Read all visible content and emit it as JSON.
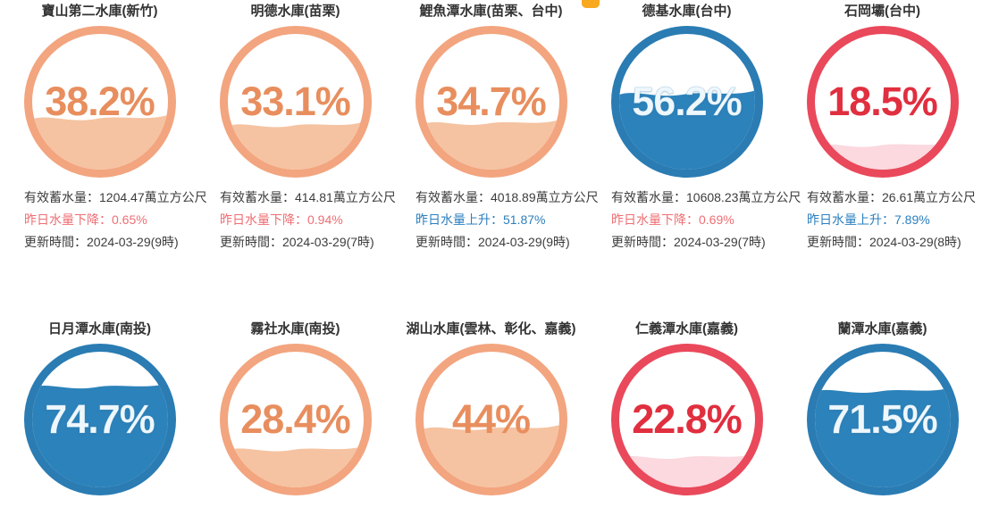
{
  "page": {
    "background": "#ffffff"
  },
  "top_tab": {
    "color": "#f8a91f"
  },
  "colors": {
    "text": "#3c3c3c",
    "down": "#ee6e73",
    "up": "#2b7fbe"
  },
  "themes": {
    "orange": {
      "ring": "#f2a57f",
      "water": "#f5c3a1",
      "percent": "#e88e5e"
    },
    "blue": {
      "ring": "#2a7cb3",
      "water": "#2c82ba",
      "percent": "#eef7fc"
    },
    "red": {
      "ring": "#e9495b",
      "water": "#fcd8df",
      "percent": "#e02f3f"
    }
  },
  "reservoirs": [
    {
      "title": "寶山第二水庫(新竹)",
      "percent": 38.2,
      "percent_label": "38.2%",
      "theme": "orange",
      "storage": "有效蓄水量：1204.47萬立方公尺",
      "change": "昨日水量下降：0.65%",
      "change_direction": "down",
      "updated": "更新時間：2024-03-29(9時)"
    },
    {
      "title": "明德水庫(苗栗)",
      "percent": 33.1,
      "percent_label": "33.1%",
      "theme": "orange",
      "storage": "有效蓄水量：414.81萬立方公尺",
      "change": "昨日水量下降：0.94%",
      "change_direction": "down",
      "updated": "更新時間：2024-03-29(7時)"
    },
    {
      "title": "鯉魚潭水庫(苗栗、台中)",
      "percent": 34.7,
      "percent_label": "34.7%",
      "theme": "orange",
      "storage": "有效蓄水量：4018.89萬立方公尺",
      "change": "昨日水量上升：51.87%",
      "change_direction": "up",
      "updated": "更新時間：2024-03-29(9時)"
    },
    {
      "title": "德基水庫(台中)",
      "percent": 56.2,
      "percent_label": "56.2%",
      "theme": "blue",
      "storage": "有效蓄水量：10608.23萬立方公尺",
      "change": "昨日水量下降：0.69%",
      "change_direction": "down",
      "updated": "更新時間：2024-03-29(7時)"
    },
    {
      "title": "石岡壩(台中)",
      "percent": 18.5,
      "percent_label": "18.5%",
      "theme": "red",
      "storage": "有效蓄水量：26.61萬立方公尺",
      "change": "昨日水量上升：7.89%",
      "change_direction": "up",
      "updated": "更新時間：2024-03-29(8時)"
    },
    {
      "title": "日月潭水庫(南投)",
      "percent": 74.7,
      "percent_label": "74.7%",
      "theme": "blue"
    },
    {
      "title": "霧社水庫(南投)",
      "percent": 28.4,
      "percent_label": "28.4%",
      "theme": "orange"
    },
    {
      "title": "湖山水庫(雲林、彰化、嘉義)",
      "percent": 44,
      "percent_label": "44%",
      "theme": "orange"
    },
    {
      "title": "仁義潭水庫(嘉義)",
      "percent": 22.8,
      "percent_label": "22.8%",
      "theme": "red"
    },
    {
      "title": "蘭潭水庫(嘉義)",
      "percent": 71.5,
      "percent_label": "71.5%",
      "theme": "blue"
    }
  ],
  "chart_data": {
    "type": "gauge",
    "unit": "%",
    "range": [
      0,
      100
    ],
    "categories": [
      "寶山第二水庫(新竹)",
      "明德水庫(苗栗)",
      "鯉魚潭水庫(苗栗、台中)",
      "德基水庫(台中)",
      "石岡壩(台中)",
      "日月潭水庫(南投)",
      "霧社水庫(南投)",
      "湖山水庫(雲林、彰化、嘉義)",
      "仁義潭水庫(嘉義)",
      "蘭潭水庫(嘉義)"
    ],
    "values": [
      38.2,
      33.1,
      34.7,
      56.2,
      18.5,
      74.7,
      28.4,
      44,
      22.8,
      71.5
    ],
    "series_note": "水庫蓄水率 gauge charts; color indicates level: blue=high, orange=mid, red=low"
  }
}
